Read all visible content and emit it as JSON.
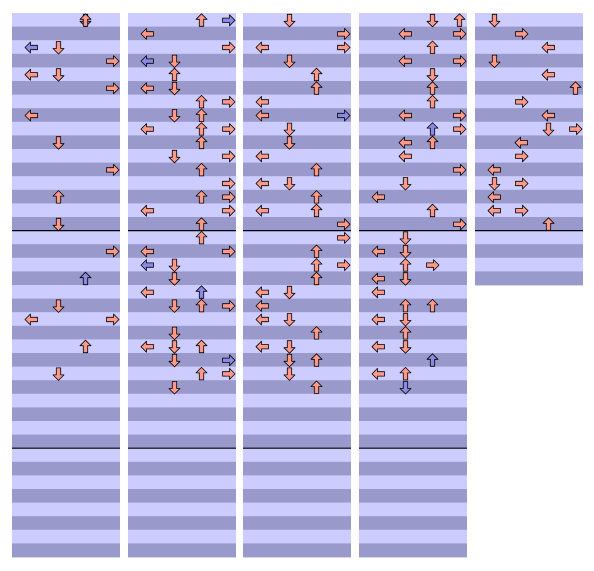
{
  "chart": {
    "rows_per_measure": 8,
    "lane_count": 4,
    "colors": {
      "stripe_light": "#ccccff",
      "stripe_dark": "#9999cc",
      "measure_line": "#000000",
      "note_primary": "#ff9a8a",
      "note_secondary": "#8a8ae6",
      "note_outline": "#000000"
    },
    "columns": [
      {
        "notes": [
          [
            2,
            0,
            "down",
            "secondary"
          ],
          [
            2,
            0,
            "up",
            "primary"
          ],
          [
            5,
            1,
            "down",
            "secondary"
          ],
          [
            0,
            2,
            "left",
            "secondary"
          ],
          [
            1,
            2,
            "down",
            "primary"
          ],
          [
            3,
            3,
            "right",
            "primary"
          ],
          [
            0,
            4,
            "left",
            "primary"
          ],
          [
            1,
            4,
            "down",
            "primary"
          ],
          [
            3,
            5,
            "right",
            "primary"
          ],
          [
            0,
            7,
            "left",
            "primary"
          ],
          [
            1,
            9,
            "down",
            "primary"
          ],
          [
            3,
            11,
            "right",
            "primary"
          ],
          [
            1,
            13,
            "up",
            "primary"
          ],
          [
            1,
            15,
            "down",
            "primary"
          ],
          [
            3,
            17,
            "right",
            "primary"
          ],
          [
            2,
            19,
            "up",
            "secondary"
          ],
          [
            1,
            21,
            "down",
            "primary"
          ],
          [
            0,
            22,
            "left",
            "primary"
          ],
          [
            3,
            22,
            "right",
            "primary"
          ],
          [
            2,
            24,
            "up",
            "primary"
          ],
          [
            1,
            26,
            "down",
            "primary"
          ]
        ]
      },
      {
        "notes": [
          [
            2,
            0,
            "up",
            "primary"
          ],
          [
            3,
            0,
            "right",
            "secondary"
          ],
          [
            0,
            1,
            "left",
            "primary"
          ],
          [
            3,
            2,
            "right",
            "primary"
          ],
          [
            0,
            3,
            "left",
            "secondary"
          ],
          [
            1,
            3,
            "down",
            "primary"
          ],
          [
            1,
            4,
            "up",
            "primary"
          ],
          [
            0,
            5,
            "left",
            "primary"
          ],
          [
            1,
            5,
            "down",
            "primary"
          ],
          [
            2,
            6,
            "up",
            "primary"
          ],
          [
            3,
            6,
            "right",
            "primary"
          ],
          [
            1,
            7,
            "down",
            "primary"
          ],
          [
            2,
            7,
            "up",
            "primary"
          ],
          [
            0,
            8,
            "left",
            "primary"
          ],
          [
            2,
            8,
            "up",
            "primary"
          ],
          [
            3,
            8,
            "right",
            "primary"
          ],
          [
            2,
            9,
            "up",
            "primary"
          ],
          [
            1,
            10,
            "down",
            "primary"
          ],
          [
            3,
            10,
            "right",
            "primary"
          ],
          [
            2,
            11,
            "up",
            "primary"
          ],
          [
            3,
            12,
            "right",
            "primary"
          ],
          [
            2,
            13,
            "up",
            "primary"
          ],
          [
            3,
            13,
            "right",
            "primary"
          ],
          [
            0,
            14,
            "left",
            "primary"
          ],
          [
            3,
            14,
            "right",
            "primary"
          ],
          [
            2,
            15,
            "up",
            "primary"
          ],
          [
            2,
            16,
            "up",
            "primary"
          ],
          [
            0,
            17,
            "left",
            "primary"
          ],
          [
            3,
            17,
            "right",
            "primary"
          ],
          [
            0,
            18,
            "left",
            "secondary"
          ],
          [
            1,
            18,
            "down",
            "primary"
          ],
          [
            1,
            19,
            "down",
            "primary"
          ],
          [
            0,
            20,
            "left",
            "primary"
          ],
          [
            2,
            20,
            "up",
            "secondary"
          ],
          [
            1,
            21,
            "down",
            "primary"
          ],
          [
            2,
            21,
            "up",
            "primary"
          ],
          [
            3,
            21,
            "right",
            "primary"
          ],
          [
            1,
            23,
            "down",
            "primary"
          ],
          [
            0,
            24,
            "left",
            "primary"
          ],
          [
            1,
            24,
            "down",
            "primary"
          ],
          [
            2,
            24,
            "up",
            "primary"
          ],
          [
            1,
            25,
            "down",
            "primary"
          ],
          [
            3,
            25,
            "right",
            "secondary"
          ],
          [
            2,
            26,
            "up",
            "primary"
          ],
          [
            3,
            26,
            "right",
            "primary"
          ],
          [
            1,
            27,
            "down",
            "primary"
          ]
        ]
      },
      {
        "notes": [
          [
            1,
            0,
            "down",
            "primary"
          ],
          [
            3,
            1,
            "right",
            "primary"
          ],
          [
            0,
            2,
            "left",
            "primary"
          ],
          [
            3,
            2,
            "right",
            "primary"
          ],
          [
            1,
            3,
            "down",
            "primary"
          ],
          [
            2,
            4,
            "up",
            "primary"
          ],
          [
            2,
            5,
            "up",
            "primary"
          ],
          [
            0,
            6,
            "left",
            "primary"
          ],
          [
            0,
            7,
            "left",
            "primary"
          ],
          [
            3,
            7,
            "right",
            "secondary"
          ],
          [
            1,
            8,
            "down",
            "primary"
          ],
          [
            1,
            9,
            "down",
            "primary"
          ],
          [
            0,
            10,
            "left",
            "primary"
          ],
          [
            2,
            11,
            "up",
            "primary"
          ],
          [
            0,
            12,
            "left",
            "primary"
          ],
          [
            1,
            12,
            "down",
            "primary"
          ],
          [
            2,
            13,
            "up",
            "primary"
          ],
          [
            0,
            14,
            "left",
            "primary"
          ],
          [
            2,
            14,
            "up",
            "primary"
          ],
          [
            3,
            15,
            "right",
            "primary"
          ],
          [
            3,
            16,
            "right",
            "primary"
          ],
          [
            2,
            17,
            "up",
            "primary"
          ],
          [
            2,
            18,
            "up",
            "primary"
          ],
          [
            3,
            18,
            "right",
            "primary"
          ],
          [
            2,
            19,
            "up",
            "primary"
          ],
          [
            0,
            20,
            "left",
            "primary"
          ],
          [
            1,
            20,
            "down",
            "primary"
          ],
          [
            0,
            21,
            "left",
            "primary"
          ],
          [
            0,
            22,
            "left",
            "primary"
          ],
          [
            1,
            22,
            "down",
            "primary"
          ],
          [
            2,
            23,
            "up",
            "primary"
          ],
          [
            0,
            24,
            "left",
            "primary"
          ],
          [
            1,
            24,
            "down",
            "primary"
          ],
          [
            1,
            25,
            "down",
            "primary"
          ],
          [
            2,
            25,
            "up",
            "primary"
          ],
          [
            1,
            26,
            "down",
            "primary"
          ],
          [
            2,
            27,
            "up",
            "primary"
          ]
        ]
      },
      {
        "notes": [
          [
            2,
            0,
            "down",
            "primary"
          ],
          [
            3,
            0,
            "up",
            "primary"
          ],
          [
            1,
            1,
            "left",
            "primary"
          ],
          [
            3,
            1,
            "right",
            "primary"
          ],
          [
            2,
            2,
            "up",
            "primary"
          ],
          [
            1,
            3,
            "left",
            "primary"
          ],
          [
            3,
            3,
            "right",
            "primary"
          ],
          [
            2,
            4,
            "down",
            "primary"
          ],
          [
            2,
            5,
            "up",
            "primary"
          ],
          [
            2,
            6,
            "up",
            "primary"
          ],
          [
            1,
            7,
            "left",
            "primary"
          ],
          [
            3,
            7,
            "right",
            "primary"
          ],
          [
            2,
            8,
            "up",
            "secondary"
          ],
          [
            3,
            8,
            "right",
            "primary"
          ],
          [
            1,
            9,
            "left",
            "primary"
          ],
          [
            2,
            9,
            "up",
            "primary"
          ],
          [
            1,
            10,
            "left",
            "primary"
          ],
          [
            3,
            11,
            "right",
            "primary"
          ],
          [
            1,
            12,
            "down",
            "primary"
          ],
          [
            0,
            13,
            "left",
            "primary"
          ],
          [
            2,
            14,
            "up",
            "primary"
          ],
          [
            3,
            15,
            "right",
            "primary"
          ],
          [
            1,
            16,
            "down",
            "primary"
          ],
          [
            0,
            17,
            "left",
            "primary"
          ],
          [
            1,
            17,
            "down",
            "primary"
          ],
          [
            1,
            18,
            "up",
            "primary"
          ],
          [
            2,
            18,
            "right",
            "primary"
          ],
          [
            0,
            19,
            "left",
            "primary"
          ],
          [
            1,
            19,
            "down",
            "primary"
          ],
          [
            0,
            20,
            "left",
            "primary"
          ],
          [
            1,
            21,
            "up",
            "primary"
          ],
          [
            2,
            21,
            "up",
            "primary"
          ],
          [
            0,
            22,
            "left",
            "primary"
          ],
          [
            1,
            22,
            "down",
            "primary"
          ],
          [
            1,
            23,
            "up",
            "primary"
          ],
          [
            0,
            24,
            "left",
            "primary"
          ],
          [
            1,
            24,
            "down",
            "primary"
          ],
          [
            2,
            25,
            "up",
            "secondary"
          ],
          [
            0,
            26,
            "left",
            "primary"
          ],
          [
            1,
            26,
            "up",
            "primary"
          ],
          [
            1,
            27,
            "down",
            "secondary"
          ]
        ]
      },
      {
        "notes": [
          [
            0,
            0,
            "down",
            "primary"
          ],
          [
            1,
            1,
            "right",
            "primary"
          ],
          [
            2,
            2,
            "left",
            "primary"
          ],
          [
            0,
            3,
            "down",
            "primary"
          ],
          [
            2,
            4,
            "left",
            "primary"
          ],
          [
            3,
            5,
            "up",
            "primary"
          ],
          [
            1,
            6,
            "right",
            "primary"
          ],
          [
            2,
            7,
            "left",
            "primary"
          ],
          [
            2,
            8,
            "down",
            "primary"
          ],
          [
            3,
            8,
            "right",
            "primary"
          ],
          [
            1,
            9,
            "left",
            "primary"
          ],
          [
            1,
            10,
            "right",
            "primary"
          ],
          [
            0,
            11,
            "left",
            "primary"
          ],
          [
            0,
            12,
            "down",
            "primary"
          ],
          [
            1,
            12,
            "right",
            "primary"
          ],
          [
            0,
            13,
            "left",
            "primary"
          ],
          [
            0,
            14,
            "left",
            "primary"
          ],
          [
            1,
            14,
            "right",
            "primary"
          ],
          [
            2,
            15,
            "up",
            "primary"
          ]
        ]
      }
    ]
  }
}
